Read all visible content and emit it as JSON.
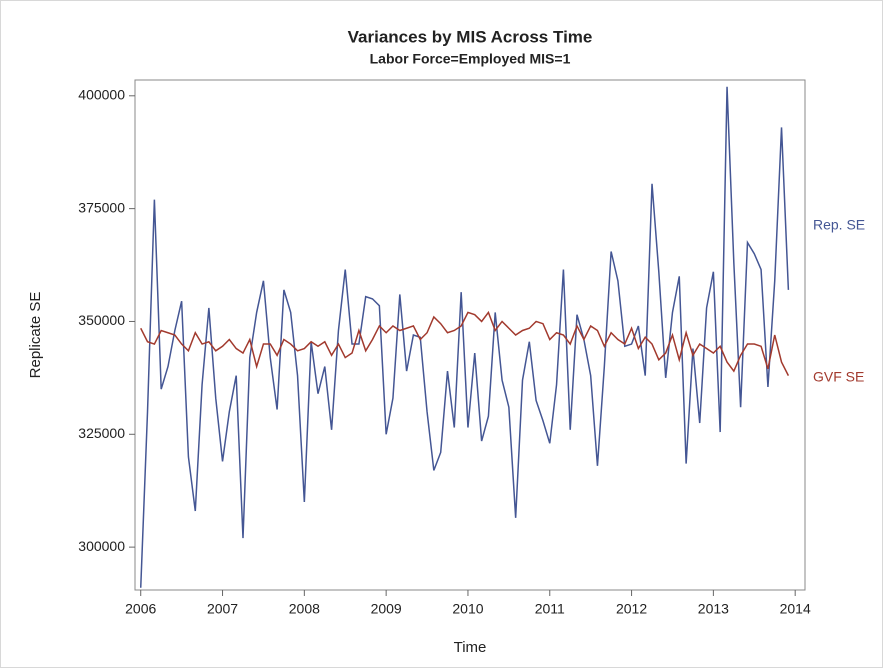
{
  "chart_data": {
    "type": "line",
    "title": "Variances by MIS Across Time",
    "subtitle": "Labor Force=Employed MIS=1",
    "xlabel": "Time",
    "ylabel": "Replicate SE",
    "xlim": [
      2005.93,
      2014.12
    ],
    "xticks": [
      2006,
      2007,
      2008,
      2009,
      2010,
      2011,
      2012,
      2013,
      2014
    ],
    "ylim": [
      290500,
      403500
    ],
    "yticks": [
      300000,
      325000,
      350000,
      375000,
      400000
    ],
    "x": [
      2006,
      2006.083,
      2006.167,
      2006.25,
      2006.333,
      2006.417,
      2006.5,
      2006.583,
      2006.667,
      2006.75,
      2006.833,
      2006.917,
      2007,
      2007.083,
      2007.167,
      2007.25,
      2007.333,
      2007.417,
      2007.5,
      2007.583,
      2007.667,
      2007.75,
      2007.833,
      2007.917,
      2008,
      2008.083,
      2008.167,
      2008.25,
      2008.333,
      2008.417,
      2008.5,
      2008.583,
      2008.667,
      2008.75,
      2008.833,
      2008.917,
      2009,
      2009.083,
      2009.167,
      2009.25,
      2009.333,
      2009.417,
      2009.5,
      2009.583,
      2009.667,
      2009.75,
      2009.833,
      2009.917,
      2010,
      2010.083,
      2010.167,
      2010.25,
      2010.333,
      2010.417,
      2010.5,
      2010.583,
      2010.667,
      2010.75,
      2010.833,
      2010.917,
      2011,
      2011.083,
      2011.167,
      2011.25,
      2011.333,
      2011.417,
      2011.5,
      2011.583,
      2011.667,
      2011.75,
      2011.833,
      2011.917,
      2012,
      2012.083,
      2012.167,
      2012.25,
      2012.333,
      2012.417,
      2012.5,
      2012.583,
      2012.667,
      2012.75,
      2012.833,
      2012.917,
      2013,
      2013.083,
      2013.167,
      2013.25,
      2013.333,
      2013.417,
      2013.5,
      2013.583,
      2013.667,
      2013.75,
      2013.833,
      2013.917
    ],
    "series": [
      {
        "name": "Rep. SE",
        "color": "#445694",
        "values": [
          291000,
          330000,
          377000,
          335000,
          340000,
          348000,
          354500,
          320000,
          308000,
          336000,
          353000,
          333000,
          319000,
          330000,
          338000,
          302000,
          342000,
          352000,
          359000,
          342000,
          330500,
          357000,
          352000,
          338000,
          310000,
          345500,
          334000,
          340000,
          326000,
          348000,
          361500,
          345000,
          345000,
          355500,
          355000,
          353500,
          325000,
          333000,
          356000,
          339000,
          347000,
          346500,
          330000,
          317000,
          321000,
          339000,
          326500,
          356500,
          326500,
          343000,
          323500,
          329000,
          352000,
          337000,
          331000,
          306500,
          337000,
          345500,
          332500,
          328000,
          323000,
          336000,
          361500,
          326000,
          351500,
          346000,
          338000,
          318000,
          340000,
          365500,
          359000,
          344500,
          345000,
          349000,
          338000,
          380500,
          361000,
          337500,
          352000,
          360000,
          318500,
          344000,
          327500,
          353000,
          361000,
          325500,
          402000,
          363000,
          331000,
          367500,
          365000,
          361500,
          335500,
          359000,
          393000,
          357000
        ]
      },
      {
        "name": "GVF SE",
        "color": "#a23a2e",
        "values": [
          348500,
          345500,
          345000,
          348000,
          347500,
          347000,
          345000,
          343500,
          347500,
          345000,
          345500,
          343500,
          344500,
          346000,
          344000,
          343000,
          346000,
          340000,
          345000,
          345000,
          342500,
          346000,
          345000,
          343500,
          344000,
          345500,
          344500,
          345500,
          342500,
          345000,
          342000,
          343000,
          348000,
          343500,
          346000,
          349000,
          347500,
          349000,
          348000,
          348500,
          349000,
          346000,
          347500,
          351000,
          349500,
          347500,
          348000,
          349000,
          352000,
          351500,
          350000,
          352000,
          348000,
          350000,
          348500,
          347000,
          348000,
          348500,
          350000,
          349500,
          346000,
          347500,
          347000,
          345000,
          349000,
          346000,
          349000,
          348000,
          344500,
          347500,
          346000,
          345000,
          348500,
          344000,
          346500,
          345000,
          341500,
          343000,
          347000,
          341500,
          347500,
          342500,
          345000,
          344000,
          343000,
          344500,
          341000,
          339000,
          342500,
          345000,
          345000,
          344500,
          339500,
          347000,
          341000,
          338000
        ]
      }
    ]
  }
}
